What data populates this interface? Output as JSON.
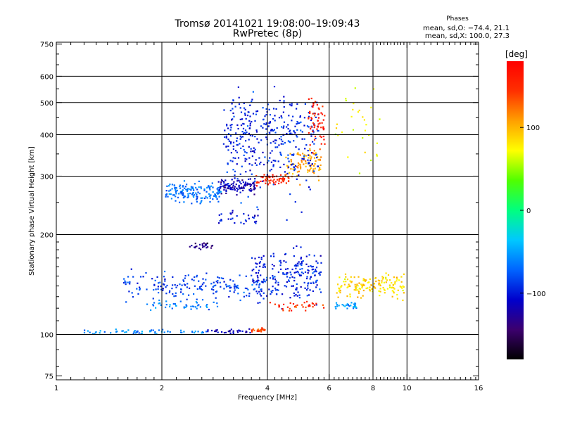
{
  "title": "Tromsø 20141021 19:08:00–19:09:43",
  "subtitle": "RwPretec (8p)",
  "phase_box": {
    "heading": "Phases",
    "stat_o": "mean, sd,O: −74.4, 21.1",
    "stat_x": "mean, sd,X: 100.0, 27.3"
  },
  "colorbar": {
    "label": "[deg]",
    "ticks": [
      {
        "value": 100,
        "label": "100"
      },
      {
        "value": 0,
        "label": "0"
      },
      {
        "value": -100,
        "label": "−100"
      }
    ],
    "range": [
      -180,
      180
    ],
    "colors": [
      "#000000",
      "#3c006e",
      "#0000cc",
      "#0064ff",
      "#00c8ff",
      "#00ff80",
      "#50ff00",
      "#ffff00",
      "#ffa000",
      "#ff3000",
      "#ff0000"
    ]
  },
  "chart_data": {
    "type": "scatter",
    "xlabel": "Frequency [MHz]",
    "ylabel": "Stationary phase Virtual Height [km]",
    "xscale": "log",
    "yscale": "log",
    "xlim": [
      1,
      16
    ],
    "ylim": [
      73,
      760
    ],
    "xticks": [
      1,
      2,
      4,
      6,
      8,
      10,
      16
    ],
    "yticks": [
      75,
      100,
      200,
      300,
      400,
      500,
      600,
      750
    ],
    "xgrid": [
      2,
      4,
      6,
      8,
      10
    ],
    "ygrid": [
      100,
      200,
      300,
      400,
      500,
      600
    ],
    "color_by": "phase [deg]",
    "clusters": [
      {
        "x_range": [
          1.2,
          2.7
        ],
        "y_center": 102,
        "y_spread": 1.5,
        "phase": -60,
        "count": 60
      },
      {
        "x_range": [
          2.7,
          3.6
        ],
        "y_center": 102,
        "y_spread": 1.5,
        "phase": -115,
        "count": 30
      },
      {
        "x_range": [
          3.6,
          4.0
        ],
        "y_center": 103,
        "y_spread": 1.5,
        "phase": 140,
        "count": 25
      },
      {
        "x_range": [
          1.55,
          4.0
        ],
        "y_center": 140,
        "y_spread": 12,
        "phase": -85,
        "count": 180
      },
      {
        "x_range": [
          1.8,
          2.9
        ],
        "y_center": 122,
        "y_spread": 4,
        "phase": -60,
        "count": 45
      },
      {
        "x_range": [
          3.6,
          5.7
        ],
        "y_center": 150,
        "y_spread": 25,
        "phase": -95,
        "count": 210
      },
      {
        "x_range": [
          4.0,
          5.9
        ],
        "y_center": 122,
        "y_spread": 4,
        "phase": 150,
        "count": 35
      },
      {
        "x_range": [
          2.4,
          2.8
        ],
        "y_center": 185,
        "y_spread": 4,
        "phase": -135,
        "count": 25
      },
      {
        "x_range": [
          2.9,
          3.8
        ],
        "y_center": 224,
        "y_spread": 10,
        "phase": -100,
        "count": 30
      },
      {
        "x_range": [
          2.05,
          2.95
        ],
        "y_center": 268,
        "y_spread": 18,
        "phase": -65,
        "count": 150
      },
      {
        "x_range": [
          2.9,
          3.7
        ],
        "y_center": 280,
        "y_spread": 14,
        "phase": -120,
        "count": 100
      },
      {
        "x_range": [
          3.7,
          4.6
        ],
        "y_center": 294,
        "y_spread": 10,
        "phase": 155,
        "count": 60
      },
      {
        "x_range": [
          4.5,
          5.7
        ],
        "y_center": 325,
        "y_spread": 30,
        "phase": 105,
        "count": 90
      },
      {
        "x_range": [
          3.0,
          5.6
        ],
        "y_center": 390,
        "y_spread": 120,
        "phase": -95,
        "count": 380
      },
      {
        "x_range": [
          5.2,
          5.85
        ],
        "y_center": 450,
        "y_spread": 80,
        "phase": 160,
        "count": 60
      },
      {
        "x_range": [
          6.3,
          9.8
        ],
        "y_center": 140,
        "y_spread": 10,
        "phase": 85,
        "count": 150
      },
      {
        "x_range": [
          6.2,
          7.2
        ],
        "y_center": 122,
        "y_spread": 3,
        "phase": -50,
        "count": 30
      },
      {
        "x_range": [
          6.1,
          8.5
        ],
        "y_center": 450,
        "y_spread": 120,
        "phase": 70,
        "count": 30
      }
    ]
  }
}
